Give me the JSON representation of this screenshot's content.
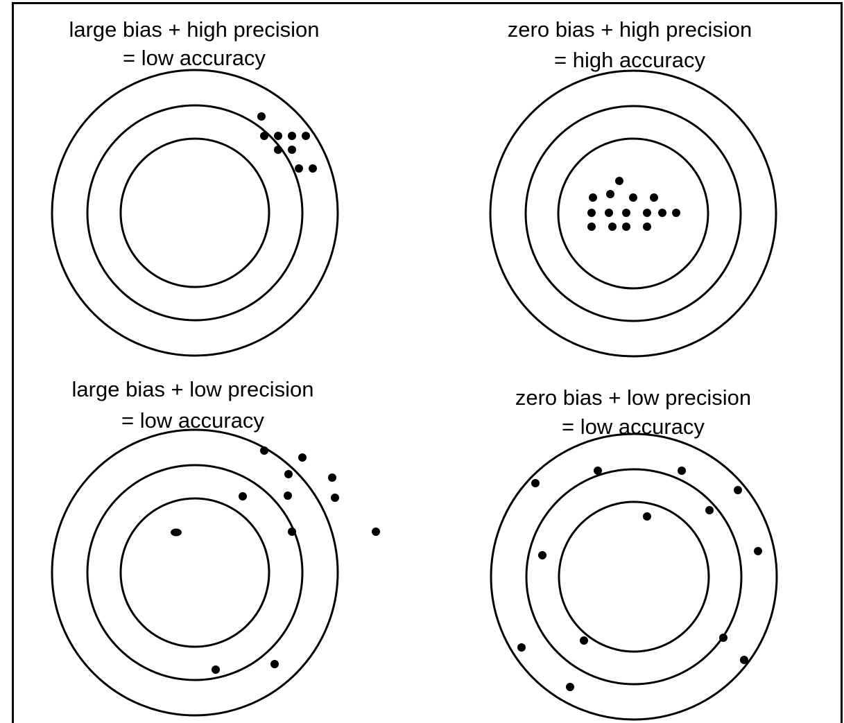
{
  "panels": [
    {
      "id": "large-bias-high-precision",
      "caption_line1": "large bias + high precision",
      "caption_line2": "= low accuracy",
      "bias": "large",
      "precision": "high",
      "accuracy": "low"
    },
    {
      "id": "zero-bias-high-precision",
      "caption_line1": "zero bias + high precision",
      "caption_line2": "= high accuracy",
      "bias": "zero",
      "precision": "high",
      "accuracy": "high"
    },
    {
      "id": "large-bias-low-precision",
      "caption_line1": "large bias + low precision",
      "caption_line2": "= low accuracy",
      "bias": "large",
      "precision": "low",
      "accuracy": "low"
    },
    {
      "id": "zero-bias-low-precision",
      "caption_line1": "zero bias + low precision",
      "caption_line2": "= low accuracy",
      "bias": "zero",
      "precision": "low",
      "accuracy": "low"
    }
  ],
  "target_ring_count": 3,
  "colors": {
    "ink": "#000000",
    "background": "#ffffff"
  }
}
